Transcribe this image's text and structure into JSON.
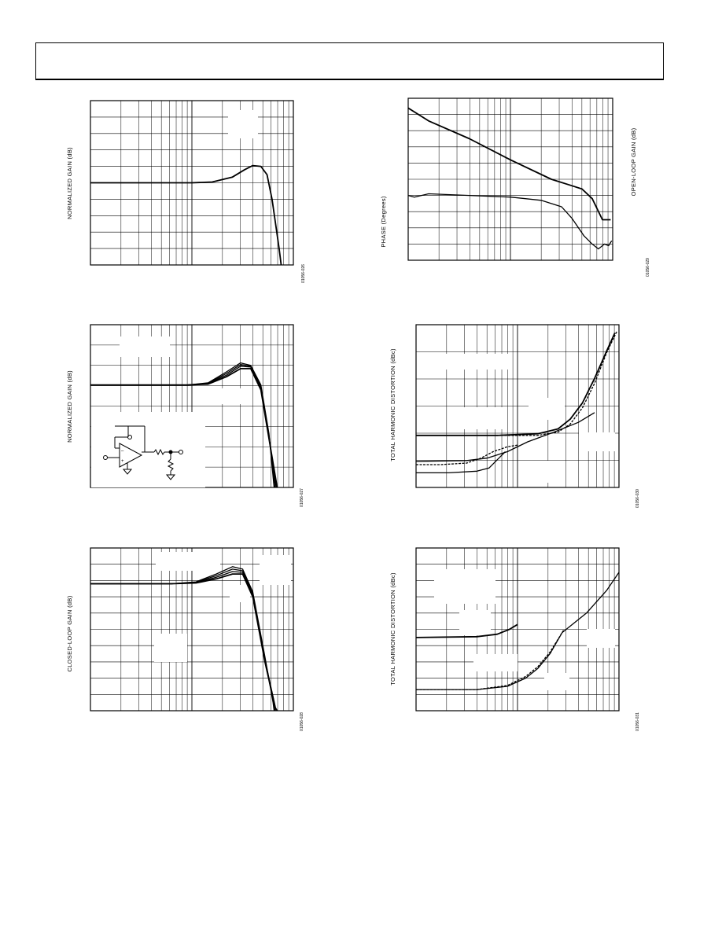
{
  "header": {
    "text": ""
  },
  "colors": {
    "ink": "#000000",
    "grid": "#000000",
    "paper": "#ffffff",
    "label_box": "#ffffff"
  },
  "charts": {
    "normalized_gain_1": {
      "ylabel": "NORMALIZED GAIN (dB)",
      "fig_id": "01056-026"
    },
    "normalized_gain_2": {
      "ylabel": "NORMALIZED GAIN (dB)",
      "fig_id": "01056-027"
    },
    "closed_loop_gain": {
      "ylabel": "CLOSED-LOOP GAIN (dB)",
      "fig_id": "01056-028"
    },
    "open_loop": {
      "ylabel_left": "PHASE (Degrees)",
      "ylabel_right": "OPEN-LOOP GAIN (dB)",
      "fig_id": "01056-029"
    },
    "thd_1": {
      "ylabel": "TOTAL HARMONIC DISTORTION (dBc)",
      "fig_id": "01056-030"
    },
    "thd_2": {
      "ylabel": "TOTAL HARMONIC DISTORTION (dBc)",
      "fig_id": "01056-031"
    }
  },
  "chart_data": [
    {
      "type": "line",
      "title": "",
      "xlabel": "",
      "ylabel": "NORMALIZED GAIN (dB)",
      "x_scale": "log",
      "xlim": [
        0,
        1
      ],
      "ylim": [
        0,
        1
      ],
      "note": "tick labels not legible; values are normalized 0-1 positions",
      "series": [
        {
          "x": [
            0,
            0.5,
            0.6,
            0.7,
            0.76,
            0.8,
            0.84,
            0.87,
            0.895,
            0.93,
            0.94
          ],
          "y": [
            0.5,
            0.5,
            0.505,
            0.535,
            0.58,
            0.605,
            0.6,
            0.55,
            0.4,
            0.1,
            0
          ]
        }
      ]
    },
    {
      "type": "line",
      "title": "",
      "xlabel": "",
      "ylabel": "NORMALIZED GAIN (dB)",
      "x_scale": "log",
      "xlim": [
        0,
        1
      ],
      "ylim": [
        0,
        1
      ],
      "series": [
        {
          "x": [
            0,
            0.48,
            0.58,
            0.67,
            0.74,
            0.79,
            0.84,
            0.88,
            0.92
          ],
          "y": [
            0.63,
            0.63,
            0.635,
            0.68,
            0.73,
            0.73,
            0.6,
            0.3,
            0
          ]
        },
        {
          "x": [
            0,
            0.48,
            0.58,
            0.67,
            0.74,
            0.79,
            0.84,
            0.88,
            0.915
          ],
          "y": [
            0.63,
            0.63,
            0.638,
            0.69,
            0.745,
            0.74,
            0.61,
            0.31,
            0
          ]
        },
        {
          "x": [
            0,
            0.48,
            0.58,
            0.67,
            0.74,
            0.79,
            0.84,
            0.88,
            0.91
          ],
          "y": [
            0.63,
            0.63,
            0.64,
            0.7,
            0.755,
            0.745,
            0.62,
            0.32,
            0
          ]
        },
        {
          "x": [
            0,
            0.48,
            0.58,
            0.67,
            0.74,
            0.79,
            0.84,
            0.88,
            0.905
          ],
          "y": [
            0.63,
            0.63,
            0.643,
            0.71,
            0.765,
            0.75,
            0.63,
            0.33,
            0
          ]
        }
      ]
    },
    {
      "type": "line",
      "title": "",
      "xlabel": "",
      "ylabel": "CLOSED-LOOP GAIN (dB)",
      "x_scale": "log",
      "xlim": [
        0,
        1
      ],
      "ylim": [
        0,
        1
      ],
      "series": [
        {
          "x": [
            0,
            0.4,
            0.52,
            0.62,
            0.7,
            0.75,
            0.8,
            0.86,
            0.91,
            0.92
          ],
          "y": [
            0.78,
            0.78,
            0.785,
            0.81,
            0.84,
            0.84,
            0.7,
            0.3,
            0.02,
            0
          ]
        },
        {
          "x": [
            0,
            0.4,
            0.52,
            0.62,
            0.7,
            0.75,
            0.8,
            0.86,
            0.91,
            0.915
          ],
          "y": [
            0.78,
            0.78,
            0.787,
            0.82,
            0.855,
            0.85,
            0.71,
            0.31,
            0.03,
            0
          ]
        },
        {
          "x": [
            0,
            0.4,
            0.52,
            0.62,
            0.7,
            0.75,
            0.8,
            0.86,
            0.905,
            0.91
          ],
          "y": [
            0.78,
            0.78,
            0.79,
            0.83,
            0.87,
            0.86,
            0.72,
            0.32,
            0.04,
            0
          ]
        },
        {
          "x": [
            0,
            0.4,
            0.52,
            0.62,
            0.7,
            0.75,
            0.8,
            0.86,
            0.9,
            0.905
          ],
          "y": [
            0.78,
            0.78,
            0.792,
            0.84,
            0.885,
            0.87,
            0.73,
            0.33,
            0.05,
            0
          ]
        }
      ]
    },
    {
      "type": "line",
      "title": "",
      "xlabel": "",
      "ylabel": "PHASE (Degrees)",
      "ylabel_right": "OPEN-LOOP GAIN (dB)",
      "x_scale": "log",
      "xlim": [
        0,
        1
      ],
      "ylim": [
        0,
        1
      ],
      "series": [
        {
          "x": [
            0,
            0.1,
            0.3,
            0.5,
            0.7,
            0.8,
            0.85,
            0.9,
            0.95,
            0.99
          ],
          "y": [
            0.94,
            0.86,
            0.75,
            0.62,
            0.5,
            0.46,
            0.44,
            0.38,
            0.25,
            0.25
          ]
        },
        {
          "x": [
            0,
            0.03,
            0.1,
            0.3,
            0.5,
            0.65,
            0.75,
            0.8,
            0.86,
            0.9,
            0.93,
            0.96,
            0.98,
            0.995
          ],
          "y": [
            0.4,
            0.39,
            0.41,
            0.4,
            0.39,
            0.37,
            0.33,
            0.26,
            0.15,
            0.1,
            0.07,
            0.1,
            0.09,
            0.12
          ]
        }
      ]
    },
    {
      "type": "line",
      "title": "",
      "xlabel": "",
      "ylabel": "TOTAL HARMONIC DISTORTION (dBc)",
      "x_scale": "log",
      "xlim": [
        0,
        1
      ],
      "ylim": [
        0,
        1
      ],
      "series": [
        {
          "x": [
            0,
            0.4,
            0.6,
            0.7,
            0.76,
            0.82,
            0.88,
            0.94,
            0.98
          ],
          "y": [
            0.32,
            0.32,
            0.33,
            0.36,
            0.42,
            0.52,
            0.67,
            0.84,
            0.95
          ]
        },
        {
          "x": [
            0,
            0.4,
            0.6,
            0.7,
            0.76,
            0.82,
            0.88,
            0.94,
            0.99
          ],
          "y": [
            0.32,
            0.32,
            0.32,
            0.34,
            0.39,
            0.49,
            0.64,
            0.83,
            0.96
          ]
        },
        {
          "x": [
            0,
            0.25,
            0.35,
            0.45,
            0.55,
            0.68,
            0.8,
            0.88
          ],
          "y": [
            0.16,
            0.165,
            0.18,
            0.22,
            0.28,
            0.34,
            0.4,
            0.46
          ]
        },
        {
          "x": [
            0,
            0.12,
            0.25,
            0.32,
            0.38,
            0.45,
            0.5
          ],
          "y": [
            0.14,
            0.14,
            0.15,
            0.18,
            0.22,
            0.25,
            0.26
          ]
        },
        {
          "x": [
            0,
            0.16,
            0.3,
            0.36,
            0.4,
            0.44
          ],
          "y": [
            0.09,
            0.09,
            0.1,
            0.12,
            0.17,
            0.22
          ]
        }
      ]
    },
    {
      "type": "line",
      "title": "",
      "xlabel": "",
      "ylabel": "TOTAL HARMONIC DISTORTION (dBc)",
      "x_scale": "log",
      "xlim": [
        0,
        1
      ],
      "ylim": [
        0,
        1
      ],
      "series": [
        {
          "x": [
            0,
            0.3,
            0.4,
            0.46,
            0.5
          ],
          "y": [
            0.45,
            0.455,
            0.47,
            0.5,
            0.53
          ]
        },
        {
          "x": [
            0,
            0.3,
            0.45,
            0.54,
            0.6,
            0.66,
            0.72,
            0.84,
            0.94,
            1.0
          ],
          "y": [
            0.13,
            0.13,
            0.15,
            0.2,
            0.26,
            0.35,
            0.48,
            0.6,
            0.74,
            0.85
          ]
        },
        {
          "x": [
            0,
            0.3,
            0.45,
            0.54,
            0.6,
            0.66,
            0.73
          ],
          "y": [
            0.13,
            0.13,
            0.155,
            0.21,
            0.27,
            0.36,
            0.5
          ]
        }
      ]
    }
  ]
}
